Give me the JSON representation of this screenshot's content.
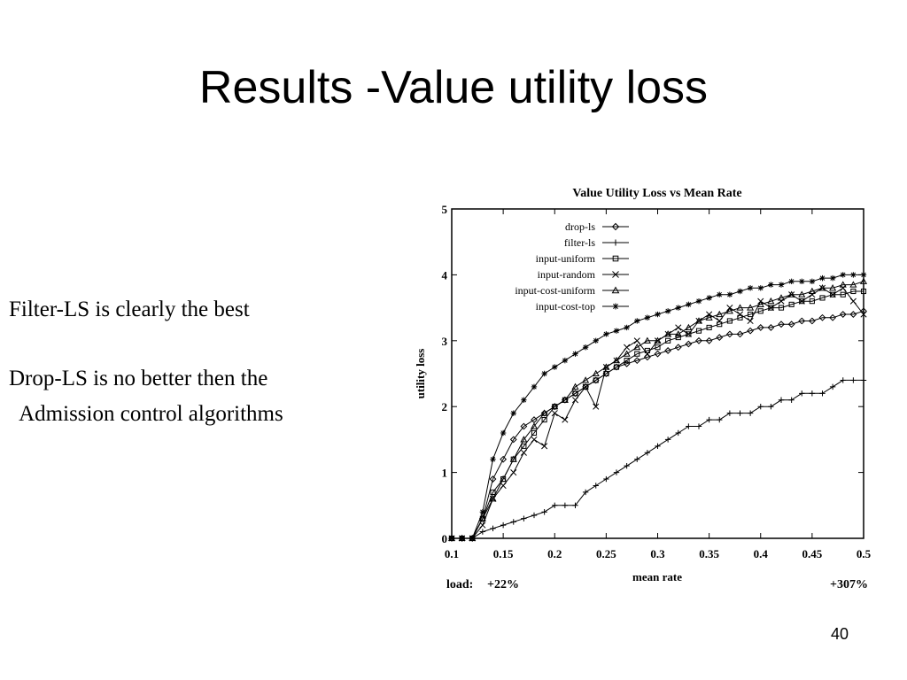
{
  "slide": {
    "title": "Results -Value utility loss",
    "bullets": [
      "Filter-LS is clearly the best",
      "Drop-LS is no better then the\n  Admission control algorithms"
    ],
    "page_number": "40"
  },
  "chart_data": {
    "type": "line",
    "title": "Value Utility Loss vs Mean Rate",
    "xlabel": "mean rate",
    "ylabel": "utility loss",
    "xlim": [
      0.1,
      0.5
    ],
    "ylim": [
      0,
      5
    ],
    "x_ticks": [
      "0.1",
      "0.15",
      "0.2",
      "0.25",
      "0.3",
      "0.35",
      "0.4",
      "0.45",
      "0.5"
    ],
    "y_ticks": [
      "0",
      "1",
      "2",
      "3",
      "4",
      "5"
    ],
    "legend_position": "top-left",
    "grid": false,
    "load_annotation": {
      "label": "load:",
      "start": "+22%",
      "end": "+307%"
    },
    "x": [
      0.1,
      0.11,
      0.12,
      0.13,
      0.14,
      0.15,
      0.16,
      0.17,
      0.18,
      0.19,
      0.2,
      0.21,
      0.22,
      0.23,
      0.24,
      0.25,
      0.26,
      0.27,
      0.28,
      0.29,
      0.3,
      0.31,
      0.32,
      0.33,
      0.34,
      0.35,
      0.36,
      0.37,
      0.38,
      0.39,
      0.4,
      0.41,
      0.42,
      0.43,
      0.44,
      0.45,
      0.46,
      0.47,
      0.48,
      0.49,
      0.5
    ],
    "series": [
      {
        "name": "drop-ls",
        "marker": "diamond",
        "values": [
          0,
          0,
          0,
          0.3,
          0.9,
          1.2,
          1.5,
          1.7,
          1.8,
          1.9,
          2.0,
          2.1,
          2.2,
          2.3,
          2.4,
          2.5,
          2.6,
          2.65,
          2.7,
          2.75,
          2.8,
          2.85,
          2.9,
          2.95,
          3.0,
          3.0,
          3.05,
          3.1,
          3.1,
          3.15,
          3.2,
          3.2,
          3.25,
          3.25,
          3.3,
          3.3,
          3.35,
          3.35,
          3.4,
          3.4,
          3.45
        ]
      },
      {
        "name": "filter-ls",
        "marker": "plus",
        "values": [
          0,
          0,
          0,
          0.1,
          0.15,
          0.2,
          0.25,
          0.3,
          0.35,
          0.4,
          0.5,
          0.5,
          0.5,
          0.7,
          0.8,
          0.9,
          1.0,
          1.1,
          1.2,
          1.3,
          1.4,
          1.5,
          1.6,
          1.7,
          1.7,
          1.8,
          1.8,
          1.9,
          1.9,
          1.9,
          2.0,
          2.0,
          2.1,
          2.1,
          2.2,
          2.2,
          2.2,
          2.3,
          2.4,
          2.4,
          2.4
        ]
      },
      {
        "name": "input-uniform",
        "marker": "square",
        "values": [
          0,
          0,
          0,
          0.3,
          0.7,
          0.9,
          1.2,
          1.4,
          1.6,
          1.8,
          2.0,
          2.1,
          2.2,
          2.3,
          2.4,
          2.5,
          2.6,
          2.7,
          2.8,
          2.85,
          2.9,
          3.0,
          3.05,
          3.1,
          3.15,
          3.2,
          3.25,
          3.3,
          3.35,
          3.4,
          3.45,
          3.5,
          3.5,
          3.55,
          3.6,
          3.6,
          3.65,
          3.7,
          3.7,
          3.75,
          3.75
        ]
      },
      {
        "name": "input-random",
        "marker": "x",
        "values": [
          0,
          0,
          0,
          0.2,
          0.6,
          0.8,
          1.0,
          1.3,
          1.5,
          1.4,
          1.9,
          1.8,
          2.1,
          2.3,
          2.0,
          2.6,
          2.7,
          2.9,
          3.0,
          2.8,
          3.0,
          3.1,
          3.2,
          3.1,
          3.3,
          3.4,
          3.3,
          3.5,
          3.4,
          3.3,
          3.6,
          3.5,
          3.6,
          3.7,
          3.6,
          3.7,
          3.8,
          3.7,
          3.8,
          3.6,
          3.4
        ]
      },
      {
        "name": "input-cost-uniform",
        "marker": "triangle",
        "values": [
          0,
          0,
          0,
          0.3,
          0.6,
          0.9,
          1.2,
          1.5,
          1.7,
          1.9,
          2.0,
          2.1,
          2.3,
          2.4,
          2.5,
          2.6,
          2.7,
          2.8,
          2.9,
          3.0,
          3.0,
          3.1,
          3.1,
          3.2,
          3.3,
          3.35,
          3.4,
          3.45,
          3.5,
          3.5,
          3.55,
          3.6,
          3.65,
          3.7,
          3.7,
          3.75,
          3.8,
          3.8,
          3.85,
          3.85,
          3.9
        ]
      },
      {
        "name": "input-cost-top",
        "marker": "star",
        "values": [
          0,
          0,
          0,
          0.4,
          1.2,
          1.6,
          1.9,
          2.1,
          2.3,
          2.5,
          2.6,
          2.7,
          2.8,
          2.9,
          3.0,
          3.1,
          3.15,
          3.2,
          3.3,
          3.35,
          3.4,
          3.45,
          3.5,
          3.55,
          3.6,
          3.65,
          3.7,
          3.7,
          3.75,
          3.8,
          3.8,
          3.85,
          3.85,
          3.9,
          3.9,
          3.9,
          3.95,
          3.95,
          4.0,
          4.0,
          4.0
        ]
      }
    ]
  }
}
